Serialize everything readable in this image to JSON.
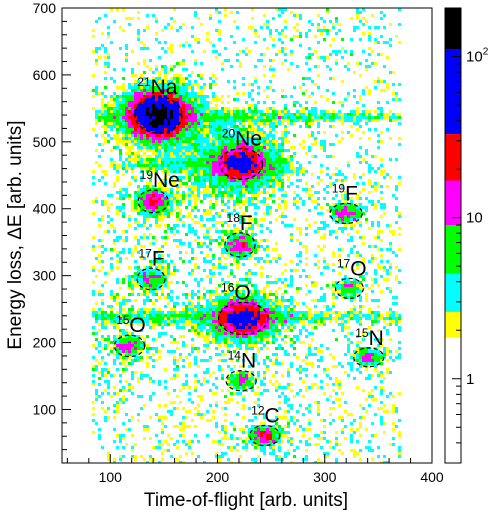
{
  "chart_data": {
    "type": "heatmap",
    "xlabel": "Time-of-flight [arb. units]",
    "ylabel": "Energy loss, ΔE [arb. units]",
    "xlim": [
      55,
      400
    ],
    "ylim": [
      20,
      700
    ],
    "x_ticks": [
      100,
      200,
      300,
      400
    ],
    "y_ticks": [
      100,
      200,
      300,
      400,
      500,
      600,
      700
    ],
    "colorbar": {
      "scale": "log",
      "range": [
        0.3,
        200
      ],
      "tick_labels": [
        {
          "value": 1,
          "text": "1"
        },
        {
          "value": 10,
          "text": "10"
        },
        {
          "value": 100,
          "text": "10",
          "sup": "2"
        }
      ],
      "colors": [
        "#ffffff",
        "#ffff00",
        "#00ffff",
        "#00ff00",
        "#ff00ff",
        "#ff0000",
        "#0000ff",
        "#000000"
      ],
      "color_steps": [
        {
          "from": 0.3,
          "to": 1.8,
          "color": "#ffffff"
        },
        {
          "from": 1.8,
          "to": 2.6,
          "color": "#ffff00"
        },
        {
          "from": 2.6,
          "to": 4.5,
          "color": "#00ffff"
        },
        {
          "from": 4.5,
          "to": 9,
          "color": "#00ff00"
        },
        {
          "from": 9,
          "to": 17,
          "color": "#ff00ff"
        },
        {
          "from": 17,
          "to": 33,
          "color": "#ff0000"
        },
        {
          "from": 33,
          "to": 110,
          "color": "#0000ff"
        },
        {
          "from": 110,
          "to": 200,
          "color": "#000000"
        }
      ]
    },
    "isotopes": [
      {
        "mass": "21",
        "element": "Na",
        "tof": 145,
        "de": 540,
        "rx": 22,
        "ry": 27,
        "peak": 180
      },
      {
        "mass": "20",
        "element": "Ne",
        "tof": 222,
        "de": 467,
        "rx": 20,
        "ry": 23,
        "peak": 60
      },
      {
        "mass": "19",
        "element": "Ne",
        "tof": 140,
        "de": 411,
        "rx": 14,
        "ry": 17,
        "peak": 20
      },
      {
        "mass": "19",
        "element": "F",
        "tof": 320,
        "de": 393,
        "rx": 15,
        "ry": 15,
        "peak": 12
      },
      {
        "mass": "18",
        "element": "F",
        "tof": 221,
        "de": 346,
        "rx": 14,
        "ry": 18,
        "peak": 14
      },
      {
        "mass": "17",
        "element": "F",
        "tof": 138,
        "de": 295,
        "rx": 13,
        "ry": 16,
        "peak": 8
      },
      {
        "mass": "17",
        "element": "O",
        "tof": 323,
        "de": 281,
        "rx": 13,
        "ry": 15,
        "peak": 8
      },
      {
        "mass": "16",
        "element": "O",
        "tof": 224,
        "de": 236,
        "rx": 23,
        "ry": 24,
        "peak": 50
      },
      {
        "mass": "15",
        "element": "O",
        "tof": 118,
        "de": 195,
        "rx": 14,
        "ry": 16,
        "peak": 10
      },
      {
        "mass": "15",
        "element": "N",
        "tof": 341,
        "de": 178,
        "rx": 14,
        "ry": 14,
        "peak": 10
      },
      {
        "mass": "14",
        "element": "N",
        "tof": 222,
        "de": 143,
        "rx": 14,
        "ry": 15,
        "peak": 8
      },
      {
        "mass": "12",
        "element": "C",
        "tof": 244,
        "de": 61,
        "rx": 14,
        "ry": 15,
        "peak": 18
      }
    ],
    "bands": [
      {
        "de": 537,
        "tof_from": 85,
        "tof_to": 370,
        "level": 3
      },
      {
        "de": 466,
        "tof_from": 100,
        "tof_to": 270,
        "level": 2.5
      },
      {
        "de": 238,
        "tof_from": 85,
        "tof_to": 370,
        "level": 3
      }
    ]
  }
}
